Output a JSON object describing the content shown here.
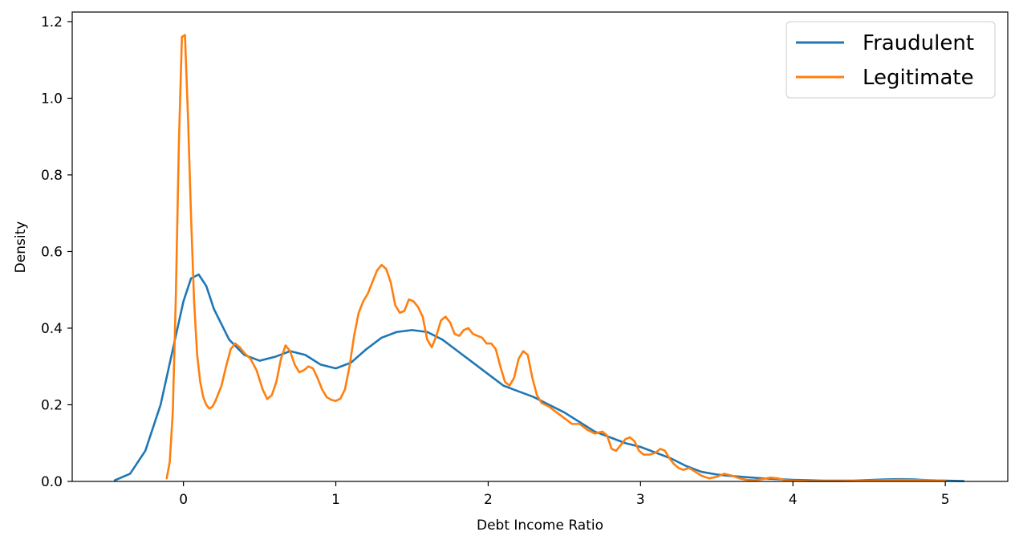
{
  "chart_data": {
    "type": "line",
    "xlabel": "Debt Income Ratio",
    "ylabel": "Density",
    "xlim": [
      -0.73,
      5.41
    ],
    "ylim": [
      0,
      1.225
    ],
    "xticks": [
      0,
      1,
      2,
      3,
      4,
      5
    ],
    "yticks": [
      0.0,
      0.2,
      0.4,
      0.6,
      0.8,
      1.0,
      1.2
    ],
    "ytick_labels": [
      "0.0",
      "0.2",
      "0.4",
      "0.6",
      "0.8",
      "1.0",
      "1.2"
    ],
    "grid": false,
    "legend_position": "top-right",
    "series": [
      {
        "name": "Fraudulent",
        "color": "#1f77b4",
        "x": [
          -0.45,
          -0.35,
          -0.25,
          -0.15,
          -0.1,
          -0.05,
          0.0,
          0.05,
          0.1,
          0.15,
          0.2,
          0.3,
          0.4,
          0.5,
          0.6,
          0.7,
          0.8,
          0.9,
          1.0,
          1.1,
          1.2,
          1.3,
          1.4,
          1.5,
          1.6,
          1.7,
          1.8,
          1.9,
          2.0,
          2.1,
          2.2,
          2.3,
          2.4,
          2.5,
          2.6,
          2.7,
          2.8,
          2.9,
          3.0,
          3.1,
          3.2,
          3.3,
          3.4,
          3.5,
          3.6,
          3.7,
          3.8,
          3.9,
          4.0,
          4.2,
          4.4,
          4.6,
          4.7,
          4.8,
          4.9,
          5.0,
          5.12
        ],
        "y": [
          0.003,
          0.02,
          0.08,
          0.2,
          0.29,
          0.38,
          0.47,
          0.53,
          0.54,
          0.51,
          0.45,
          0.37,
          0.33,
          0.315,
          0.325,
          0.34,
          0.33,
          0.305,
          0.295,
          0.31,
          0.345,
          0.375,
          0.39,
          0.395,
          0.39,
          0.37,
          0.34,
          0.31,
          0.28,
          0.25,
          0.235,
          0.22,
          0.2,
          0.18,
          0.155,
          0.13,
          0.115,
          0.1,
          0.09,
          0.075,
          0.06,
          0.04,
          0.025,
          0.018,
          0.014,
          0.011,
          0.008,
          0.006,
          0.004,
          0.002,
          0.002,
          0.005,
          0.006,
          0.005,
          0.003,
          0.002,
          0.001
        ]
      },
      {
        "name": "Legitimate",
        "color": "#ff7f0e",
        "x": [
          -0.11,
          -0.09,
          -0.07,
          -0.05,
          -0.03,
          -0.01,
          0.01,
          0.03,
          0.05,
          0.07,
          0.09,
          0.11,
          0.13,
          0.15,
          0.17,
          0.19,
          0.21,
          0.23,
          0.25,
          0.28,
          0.31,
          0.34,
          0.37,
          0.4,
          0.44,
          0.48,
          0.52,
          0.55,
          0.58,
          0.61,
          0.64,
          0.67,
          0.7,
          0.73,
          0.76,
          0.79,
          0.82,
          0.85,
          0.88,
          0.91,
          0.94,
          0.97,
          1.0,
          1.03,
          1.06,
          1.09,
          1.12,
          1.15,
          1.18,
          1.21,
          1.24,
          1.27,
          1.3,
          1.33,
          1.36,
          1.39,
          1.42,
          1.45,
          1.48,
          1.51,
          1.54,
          1.57,
          1.6,
          1.63,
          1.66,
          1.69,
          1.72,
          1.75,
          1.78,
          1.81,
          1.84,
          1.87,
          1.9,
          1.93,
          1.96,
          1.99,
          2.02,
          2.05,
          2.08,
          2.11,
          2.14,
          2.17,
          2.2,
          2.23,
          2.26,
          2.29,
          2.32,
          2.35,
          2.4,
          2.45,
          2.5,
          2.55,
          2.6,
          2.65,
          2.7,
          2.75,
          2.78,
          2.81,
          2.84,
          2.87,
          2.9,
          2.93,
          2.96,
          2.99,
          3.02,
          3.06,
          3.1,
          3.13,
          3.16,
          3.19,
          3.22,
          3.25,
          3.28,
          3.32,
          3.36,
          3.4,
          3.45,
          3.5,
          3.55,
          3.6,
          3.65,
          3.7,
          3.75,
          3.8,
          3.85,
          3.9,
          3.95,
          4.0,
          4.1,
          4.3,
          4.5,
          4.7,
          4.9,
          5.0
        ],
        "y": [
          0.008,
          0.05,
          0.18,
          0.48,
          0.88,
          1.16,
          1.165,
          0.95,
          0.69,
          0.47,
          0.33,
          0.26,
          0.22,
          0.2,
          0.19,
          0.195,
          0.21,
          0.23,
          0.25,
          0.3,
          0.345,
          0.36,
          0.35,
          0.335,
          0.32,
          0.29,
          0.24,
          0.215,
          0.225,
          0.26,
          0.32,
          0.355,
          0.34,
          0.305,
          0.285,
          0.29,
          0.3,
          0.295,
          0.27,
          0.24,
          0.22,
          0.213,
          0.21,
          0.216,
          0.24,
          0.3,
          0.38,
          0.44,
          0.47,
          0.49,
          0.52,
          0.55,
          0.565,
          0.555,
          0.52,
          0.46,
          0.44,
          0.445,
          0.475,
          0.47,
          0.455,
          0.43,
          0.37,
          0.35,
          0.38,
          0.42,
          0.43,
          0.415,
          0.385,
          0.38,
          0.395,
          0.4,
          0.385,
          0.38,
          0.375,
          0.36,
          0.36,
          0.345,
          0.3,
          0.26,
          0.25,
          0.27,
          0.32,
          0.34,
          0.33,
          0.27,
          0.225,
          0.205,
          0.195,
          0.18,
          0.165,
          0.15,
          0.15,
          0.135,
          0.125,
          0.13,
          0.12,
          0.085,
          0.08,
          0.095,
          0.11,
          0.115,
          0.105,
          0.08,
          0.07,
          0.07,
          0.075,
          0.085,
          0.08,
          0.06,
          0.045,
          0.035,
          0.03,
          0.035,
          0.025,
          0.015,
          0.008,
          0.012,
          0.02,
          0.015,
          0.008,
          0.004,
          0.003,
          0.006,
          0.01,
          0.008,
          0.003,
          0.002,
          0.001,
          0.001,
          0.002,
          0.004,
          0.003,
          0.002
        ]
      }
    ]
  }
}
